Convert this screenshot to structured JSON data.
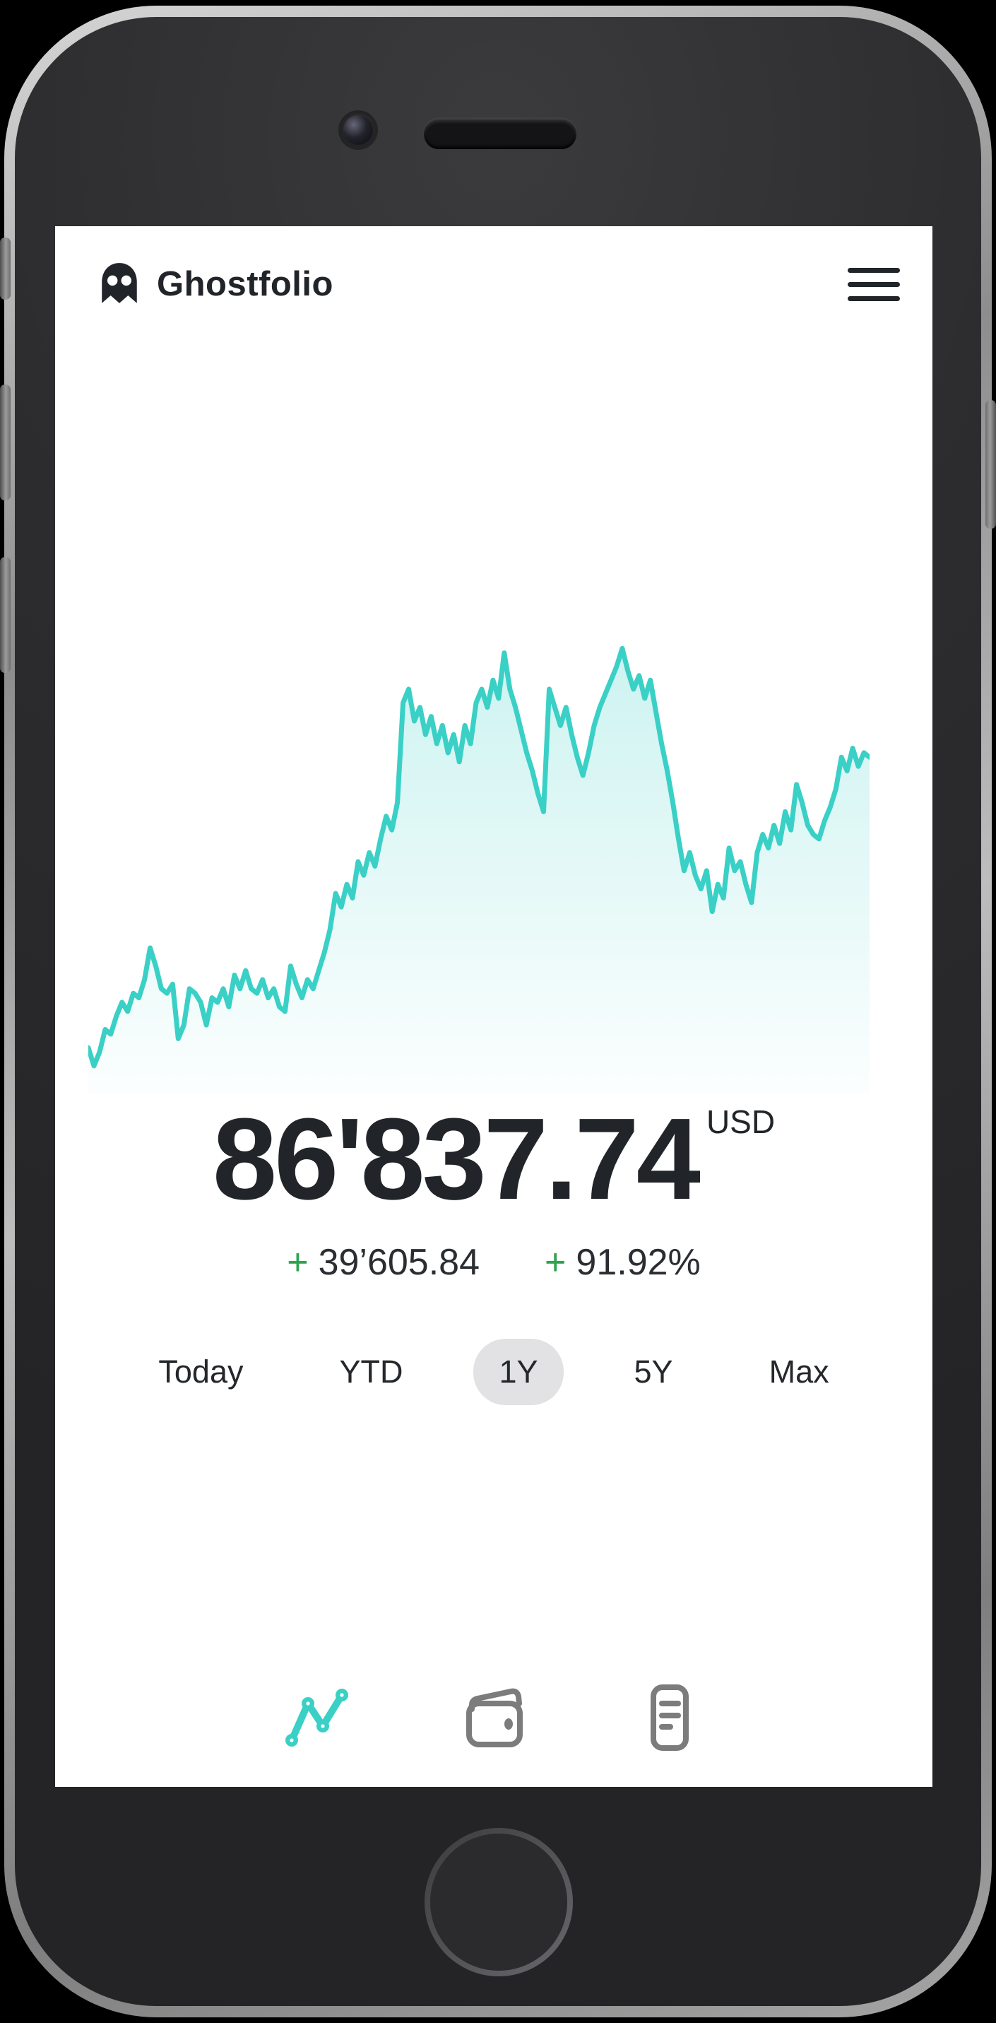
{
  "header": {
    "app_name": "Ghostfolio",
    "logo_icon": "ghost-icon",
    "menu_icon": "hamburger-menu-icon"
  },
  "portfolio": {
    "value": "86'837.74",
    "currency": "USD",
    "change_absolute_sign": "+",
    "change_absolute": "39’605.84",
    "change_percent_sign": "+",
    "change_percent": "91.92%"
  },
  "ranges": {
    "options": [
      {
        "label": "Today",
        "selected": false
      },
      {
        "label": "YTD",
        "selected": false
      },
      {
        "label": "1Y",
        "selected": true
      },
      {
        "label": "5Y",
        "selected": false
      },
      {
        "label": "Max",
        "selected": false
      }
    ]
  },
  "nav": {
    "items": [
      {
        "icon": "line-chart-icon",
        "active": true
      },
      {
        "icon": "wallet-icon",
        "active": false
      },
      {
        "icon": "transactions-icon",
        "active": false
      }
    ]
  },
  "colors": {
    "accent_teal": "#3ad0c6",
    "positive_green": "#2da44e",
    "text_dark": "#212529",
    "pill_gray": "#e2e2e4",
    "nav_inactive_gray": "#7c7c7c"
  },
  "chart_data": {
    "type": "area",
    "title": "",
    "x": {
      "label": "time",
      "range": "1Y",
      "ticks_visible": false
    },
    "y": {
      "label": "portfolio value (normalized 0-100)",
      "min": 0,
      "max": 100,
      "ticks_visible": false
    },
    "grid": false,
    "legend": false,
    "line_color": "#3ad0c6",
    "fill_top": "rgba(61,209,199,0.26)",
    "fill_bottom": "rgba(61,209,199,0.02)",
    "series": [
      {
        "name": "portfolio-performance-1Y",
        "values": [
          9,
          5,
          8,
          13,
          12,
          16,
          19,
          17,
          21,
          20,
          24,
          31,
          27,
          22,
          21,
          23,
          11,
          14,
          22,
          21,
          19,
          14,
          20,
          19,
          22,
          18,
          25,
          22,
          26,
          22,
          21,
          24,
          20,
          22,
          18,
          17,
          27,
          23,
          20,
          24,
          22,
          26,
          30,
          35,
          43,
          40,
          45,
          42,
          50,
          47,
          52,
          49,
          55,
          60,
          57,
          63,
          85,
          88,
          81,
          84,
          78,
          82,
          76,
          80,
          74,
          78,
          72,
          80,
          76,
          85,
          88,
          84,
          90,
          86,
          96,
          88,
          84,
          79,
          74,
          70,
          65,
          61,
          88,
          84,
          80,
          84,
          78,
          73,
          69,
          74,
          80,
          84,
          87,
          90,
          93,
          97,
          92,
          88,
          91,
          86,
          90,
          83,
          76,
          70,
          63,
          55,
          48,
          52,
          47,
          44,
          48,
          39,
          45,
          42,
          53,
          48,
          50,
          45,
          41,
          52,
          56,
          53,
          58,
          54,
          61,
          57,
          67,
          63,
          58,
          56,
          55,
          59,
          62,
          66,
          73,
          70,
          75,
          71,
          74,
          73
        ]
      }
    ]
  }
}
